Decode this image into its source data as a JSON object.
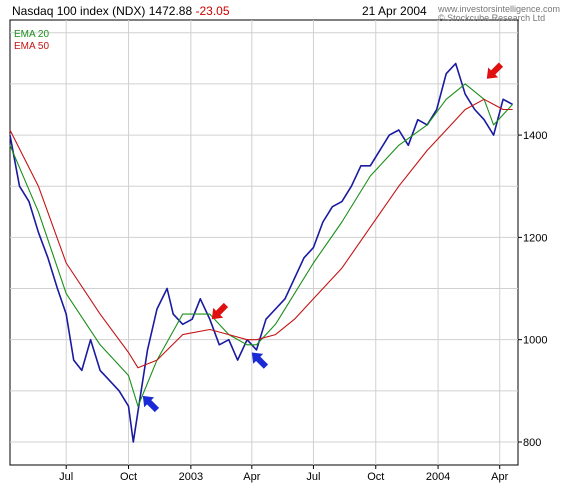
{
  "header": {
    "index_name": "Nasdaq 100 index (NDX)",
    "last_value": "1472.88",
    "change": "-23.05",
    "date": "21 Apr 2004",
    "credit_url": "www.investorsintelligence.com",
    "credit_copyright": "© Stockcube Research Ltd"
  },
  "legend": {
    "ema20": "EMA 20",
    "ema50": "EMA 50"
  },
  "colors": {
    "price": "#1a1aa0",
    "ema20": "#1a8f1a",
    "ema50": "#c41414",
    "arrow_blue": "#1a2bd6",
    "arrow_red": "#e01010",
    "grid": "#d0d0d0"
  },
  "chart_data": {
    "type": "line",
    "title": "Nasdaq 100 index (NDX)",
    "xlabel": "",
    "ylabel": "",
    "x_tick_labels": [
      "Jul",
      "Oct",
      "2003",
      "Apr",
      "Jul",
      "Oct",
      "2004",
      "Apr"
    ],
    "y_tick_labels": [
      "800",
      "1000",
      "1200",
      "1400"
    ],
    "y_ticks": [
      800,
      1000,
      1200,
      1400
    ],
    "ylim": [
      755,
      1625
    ],
    "xlim": [
      "2002-04-09",
      "2004-04-28"
    ],
    "grid": true,
    "legend_position": "top-left",
    "x_ticks": [
      "2002-07-01",
      "2002-10-01",
      "2003-01-01",
      "2003-04-01",
      "2003-07-01",
      "2003-10-01",
      "2004-01-01",
      "2004-04-01"
    ],
    "series": [
      {
        "name": "NDX",
        "x": [
          "2002-04-09",
          "2002-04-23",
          "2002-05-07",
          "2002-05-21",
          "2002-06-04",
          "2002-06-18",
          "2002-07-01",
          "2002-07-12",
          "2002-07-24",
          "2002-08-06",
          "2002-08-20",
          "2002-09-03",
          "2002-09-17",
          "2002-10-01",
          "2002-10-08",
          "2002-10-15",
          "2002-10-29",
          "2002-11-12",
          "2002-11-27",
          "2002-12-06",
          "2002-12-20",
          "2003-01-03",
          "2003-01-15",
          "2003-01-29",
          "2003-02-12",
          "2003-02-26",
          "2003-03-11",
          "2003-03-25",
          "2003-04-08",
          "2003-04-22",
          "2003-05-06",
          "2003-05-20",
          "2003-06-03",
          "2003-06-17",
          "2003-07-01",
          "2003-07-15",
          "2003-07-29",
          "2003-08-12",
          "2003-08-26",
          "2003-09-09",
          "2003-09-23",
          "2003-10-07",
          "2003-10-21",
          "2003-11-04",
          "2003-11-18",
          "2003-12-02",
          "2003-12-16",
          "2003-12-30",
          "2004-01-13",
          "2004-01-27",
          "2004-02-10",
          "2004-02-24",
          "2004-03-09",
          "2004-03-23",
          "2004-04-06",
          "2004-04-20"
        ],
        "values": [
          1400,
          1300,
          1270,
          1210,
          1160,
          1100,
          1050,
          960,
          940,
          1000,
          940,
          920,
          900,
          870,
          800,
          860,
          980,
          1060,
          1100,
          1050,
          1030,
          1040,
          1080,
          1040,
          990,
          1000,
          960,
          1000,
          980,
          1040,
          1060,
          1080,
          1120,
          1160,
          1180,
          1230,
          1260,
          1270,
          1300,
          1340,
          1340,
          1370,
          1400,
          1410,
          1380,
          1430,
          1420,
          1450,
          1520,
          1540,
          1480,
          1450,
          1430,
          1400,
          1470,
          1460
        ]
      },
      {
        "name": "EMA 20",
        "x": [
          "2002-04-09",
          "2002-05-21",
          "2002-07-01",
          "2002-08-20",
          "2002-10-01",
          "2002-10-15",
          "2002-11-12",
          "2002-12-20",
          "2003-01-29",
          "2003-02-26",
          "2003-03-25",
          "2003-04-08",
          "2003-05-06",
          "2003-06-03",
          "2003-07-01",
          "2003-08-12",
          "2003-09-23",
          "2003-11-04",
          "2003-12-16",
          "2004-01-13",
          "2004-02-10",
          "2004-03-09",
          "2004-03-23",
          "2004-04-06",
          "2004-04-20"
        ],
        "values": [
          1380,
          1250,
          1090,
          990,
          930,
          870,
          960,
          1050,
          1050,
          1010,
          990,
          990,
          1030,
          1090,
          1150,
          1230,
          1320,
          1380,
          1420,
          1470,
          1500,
          1470,
          1420,
          1440,
          1460
        ]
      },
      {
        "name": "EMA 50",
        "x": [
          "2002-04-09",
          "2002-05-21",
          "2002-07-01",
          "2002-08-20",
          "2002-10-01",
          "2002-10-15",
          "2002-11-12",
          "2002-12-20",
          "2003-01-29",
          "2003-02-26",
          "2003-03-25",
          "2003-04-08",
          "2003-05-06",
          "2003-06-03",
          "2003-07-01",
          "2003-08-12",
          "2003-09-23",
          "2003-11-04",
          "2003-12-16",
          "2004-01-13",
          "2004-02-10",
          "2004-03-09",
          "2004-03-23",
          "2004-04-06",
          "2004-04-20"
        ],
        "values": [
          1410,
          1300,
          1150,
          1050,
          975,
          945,
          960,
          1010,
          1020,
          1010,
          1000,
          1000,
          1010,
          1040,
          1080,
          1140,
          1220,
          1300,
          1370,
          1410,
          1450,
          1470,
          1460,
          1450,
          1450
        ]
      }
    ],
    "annotations": [
      {
        "kind": "arrow",
        "color": "blue",
        "direction": "up-left",
        "x": "2002-10-22",
        "y": 890
      },
      {
        "kind": "arrow",
        "color": "red",
        "direction": "down-left",
        "x": "2003-02-01",
        "y": 1040
      },
      {
        "kind": "arrow",
        "color": "blue",
        "direction": "up-left",
        "x": "2003-04-01",
        "y": 975
      },
      {
        "kind": "arrow",
        "color": "red",
        "direction": "down-left",
        "x": "2004-03-13",
        "y": 1510
      }
    ]
  }
}
